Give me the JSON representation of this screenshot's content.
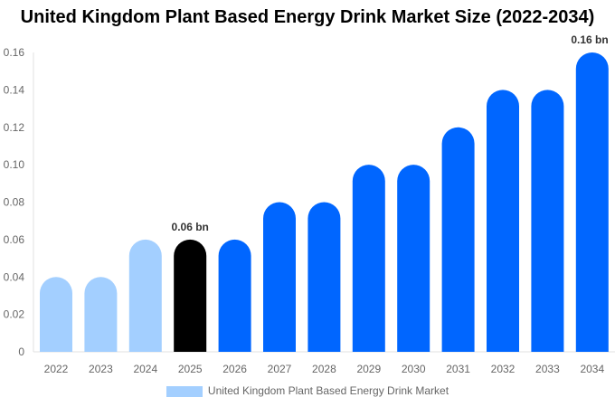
{
  "chart_data": {
    "type": "bar",
    "title": "United Kingdom Plant Based Energy Drink Market Size (2022-2034)",
    "categories": [
      "2022",
      "2023",
      "2024",
      "2025",
      "2026",
      "2027",
      "2028",
      "2029",
      "2030",
      "2031",
      "2032",
      "2033",
      "2034"
    ],
    "series": [
      {
        "name": "United Kingdom Plant Based Energy Drink Market",
        "values": [
          0.04,
          0.04,
          0.06,
          0.06,
          0.06,
          0.08,
          0.08,
          0.1,
          0.1,
          0.12,
          0.14,
          0.14,
          0.16
        ]
      }
    ],
    "bar_colors": [
      "#a3cfff",
      "#a3cfff",
      "#a3cfff",
      "#000000",
      "#0066ff",
      "#0066ff",
      "#0066ff",
      "#0066ff",
      "#0066ff",
      "#0066ff",
      "#0066ff",
      "#0066ff",
      "#0066ff"
    ],
    "data_labels": [
      {
        "category": "2025",
        "text": "0.06 bn"
      },
      {
        "category": "2034",
        "text": "0.16 bn"
      }
    ],
    "yticks": [
      "0",
      "0.02",
      "0.04",
      "0.06",
      "0.08",
      "0.10",
      "0.12",
      "0.14",
      "0.16"
    ],
    "ylim": [
      0,
      0.16
    ],
    "grid": false,
    "legend_placement": "bottom",
    "legend_color": "#a3cfff"
  }
}
